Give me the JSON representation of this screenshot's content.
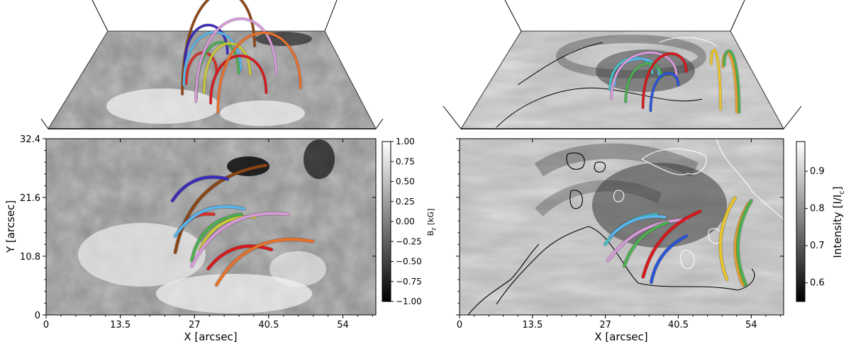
{
  "chart_data": [
    {
      "type": "heatmap",
      "panel": "left",
      "xlabel": "X [arcsec]",
      "ylabel": "Y [arcsec]",
      "xticks": [
        "0",
        "13.5",
        "27",
        "40.5",
        "54"
      ],
      "yticks": [
        "0",
        "10.8",
        "21.6",
        "32.4"
      ],
      "xlim": [
        0,
        60
      ],
      "ylim": [
        0,
        32.4
      ],
      "colorbar": {
        "label": "B",
        "label_sub": "z",
        "label_unit": " [kG]",
        "ticks": [
          "1.00",
          "0.75",
          "0.50",
          "0.25",
          "0.00",
          "−0.25",
          "−0.50",
          "−0.75",
          "−1.00"
        ],
        "range": [
          -1.0,
          1.0
        ],
        "colormap": "gray"
      },
      "loops": [
        {
          "color": "#8b4513",
          "start": [
            23.5,
            11.5
          ],
          "end": [
            40.0,
            27.5
          ]
        },
        {
          "color": "#3a2bb8",
          "start": [
            23.0,
            21.0
          ],
          "end": [
            33.0,
            25.0
          ]
        },
        {
          "color": "#d73027",
          "start": [
            24.0,
            15.0
          ],
          "end": [
            30.5,
            18.5
          ]
        },
        {
          "color": "#5ab4e8",
          "start": [
            23.5,
            14.5
          ],
          "end": [
            36.0,
            19.5
          ]
        },
        {
          "color": "#4caf50",
          "start": [
            26.5,
            10.0
          ],
          "end": [
            35.5,
            18.5
          ]
        },
        {
          "color": "#c9c93a",
          "start": [
            28.0,
            12.0
          ],
          "end": [
            38.0,
            18.0
          ]
        },
        {
          "color": "#d69ad6",
          "start": [
            26.5,
            9.0
          ],
          "end": [
            44.0,
            18.5
          ]
        },
        {
          "color": "#d7191c",
          "start": [
            29.5,
            8.5
          ],
          "end": [
            41.0,
            12.0
          ]
        },
        {
          "color": "#e8712c",
          "start": [
            31.0,
            5.5
          ],
          "end": [
            48.5,
            13.5
          ]
        }
      ]
    },
    {
      "type": "heatmap",
      "panel": "right",
      "xlabel": "X [arcsec]",
      "xticks": [
        "0",
        "13.5",
        "27",
        "40.5",
        "54"
      ],
      "xlim": [
        0,
        60
      ],
      "ylim": [
        0,
        32.4
      ],
      "colorbar": {
        "label": "Intensity [I/I",
        "label_sub": "c",
        "label_unit": "]",
        "ticks": [
          "0.9",
          "0.8",
          "0.7",
          "0.6"
        ],
        "range": [
          0.55,
          0.98
        ],
        "colormap": "gray"
      },
      "loops": [
        {
          "color": "#49c0c8",
          "start": [
            27.0,
            13.0
          ],
          "end": [
            36.5,
            18.5
          ]
        },
        {
          "color": "#5ab4e8",
          "start": [
            28.0,
            14.5
          ],
          "end": [
            38.0,
            18.0
          ]
        },
        {
          "color": "#d69ad6",
          "start": [
            27.5,
            10.0
          ],
          "end": [
            42.0,
            17.5
          ]
        },
        {
          "color": "#4caf50",
          "start": [
            30.5,
            9.0
          ],
          "end": [
            38.5,
            17.0
          ]
        },
        {
          "color": "#d7191c",
          "start": [
            34.0,
            7.0
          ],
          "end": [
            44.5,
            19.0
          ]
        },
        {
          "color": "#2854d8",
          "start": [
            35.5,
            6.0
          ],
          "end": [
            42.0,
            14.5
          ]
        },
        {
          "color": "#e8c42c",
          "start": [
            49.5,
            6.5
          ],
          "end": [
            51.0,
            21.5
          ]
        },
        {
          "color": "#e8a02c",
          "start": [
            52.5,
            5.5
          ],
          "end": [
            53.5,
            20.5
          ]
        },
        {
          "color": "#4caf50",
          "start": [
            53.0,
            5.5
          ],
          "end": [
            54.0,
            21.0
          ]
        }
      ]
    }
  ]
}
